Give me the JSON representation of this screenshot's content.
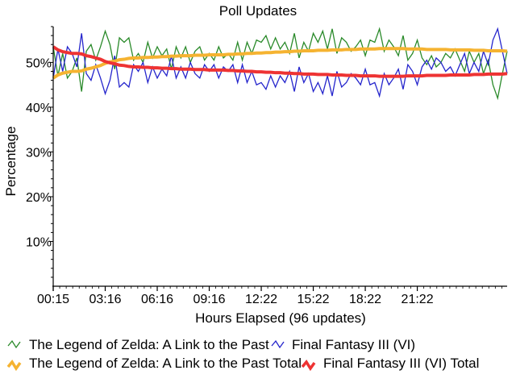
{
  "chart_data": {
    "type": "line",
    "title": "Poll Updates",
    "xlabel": "Hours Elapsed (96 updates)",
    "ylabel": "Percentage",
    "ylim": [
      0,
      58
    ],
    "xlim": [
      0,
      96
    ],
    "y_ticks": [
      "10%",
      "20%",
      "30%",
      "40%",
      "50%"
    ],
    "y_tick_values": [
      10,
      20,
      30,
      40,
      50
    ],
    "x_tick_labels": [
      "00:15",
      "03:16",
      "06:16",
      "09:16",
      "12:22",
      "15:22",
      "18:22",
      "21:22"
    ],
    "x_tick_values": [
      0,
      11,
      22,
      33,
      44,
      55,
      66,
      77
    ],
    "grid": false,
    "legend_placement": "bottom",
    "series": [
      {
        "name": "The Legend of Zelda: A Link to the Past",
        "color": "#2a8a2a",
        "style": "thin",
        "values": [
          53.5,
          47.0,
          52.0,
          46.5,
          48.0,
          51.0,
          43.5,
          52.5,
          54.0,
          50.5,
          53.5,
          57.0,
          54.0,
          48.5,
          55.5,
          54.5,
          55.5,
          50.5,
          52.0,
          50.0,
          54.5,
          51.0,
          53.5,
          51.5,
          53.0,
          48.5,
          53.5,
          51.0,
          53.5,
          50.0,
          52.5,
          53.5,
          50.5,
          52.0,
          50.5,
          53.5,
          51.0,
          52.0,
          50.5,
          54.5,
          50.5,
          54.5,
          52.0,
          55.0,
          54.5,
          56.0,
          53.0,
          55.5,
          53.0,
          54.5,
          52.0,
          56.5,
          51.0,
          54.5,
          52.5,
          56.5,
          54.5,
          57.0,
          53.0,
          57.5,
          52.0,
          55.5,
          54.5,
          52.5,
          53.5,
          55.0,
          51.5,
          55.0,
          54.5,
          57.5,
          52.5,
          55.0,
          53.5,
          51.5,
          56.0,
          50.5,
          52.0,
          55.0,
          51.0,
          49.5,
          51.5,
          49.0,
          50.0,
          52.0,
          51.0,
          53.0,
          50.5,
          48.0,
          52.5,
          50.0,
          52.0,
          47.5,
          50.5,
          45.0,
          42.0,
          47.5,
          52.5
        ]
      },
      {
        "name": "Final Fantasy III (VI)",
        "color": "#2525cc",
        "style": "thin",
        "values": [
          46.5,
          53.0,
          48.0,
          53.5,
          52.0,
          49.0,
          56.5,
          47.5,
          46.0,
          49.5,
          46.5,
          43.0,
          46.0,
          51.5,
          44.5,
          45.5,
          44.5,
          49.5,
          48.0,
          50.0,
          45.5,
          49.0,
          46.5,
          48.5,
          47.0,
          51.5,
          46.5,
          49.0,
          46.5,
          50.0,
          47.5,
          46.5,
          49.5,
          48.0,
          49.5,
          46.5,
          49.0,
          48.0,
          49.5,
          45.5,
          49.5,
          45.5,
          48.0,
          45.0,
          45.5,
          44.0,
          47.0,
          44.5,
          47.0,
          45.5,
          48.0,
          43.5,
          49.0,
          45.5,
          47.5,
          43.5,
          45.5,
          43.0,
          47.0,
          42.5,
          48.0,
          44.5,
          45.5,
          47.5,
          46.5,
          45.0,
          48.5,
          45.0,
          45.5,
          42.5,
          47.5,
          45.0,
          46.5,
          48.5,
          44.0,
          49.5,
          48.0,
          45.0,
          49.0,
          50.5,
          48.5,
          51.0,
          50.0,
          48.0,
          49.0,
          47.0,
          49.5,
          52.0,
          47.5,
          50.0,
          48.0,
          52.5,
          49.5,
          55.0,
          57.5,
          52.5,
          47.5
        ]
      },
      {
        "name": "The Legend of Zelda: A Link to the Past Total",
        "color": "#f5b331",
        "style": "thick",
        "values": [
          46.5,
          47.2,
          47.6,
          47.8,
          48.0,
          48.0,
          48.1,
          48.5,
          48.7,
          49.0,
          49.3,
          49.8,
          50.1,
          50.3,
          50.6,
          50.7,
          50.9,
          51.0,
          51.0,
          51.1,
          51.1,
          51.2,
          51.2,
          51.3,
          51.3,
          51.4,
          51.4,
          51.5,
          51.5,
          51.5,
          51.6,
          51.6,
          51.6,
          51.7,
          51.7,
          51.7,
          51.7,
          51.8,
          51.8,
          51.9,
          51.9,
          52.0,
          52.0,
          52.1,
          52.1,
          52.2,
          52.2,
          52.3,
          52.3,
          52.4,
          52.4,
          52.5,
          52.5,
          52.6,
          52.6,
          52.6,
          52.7,
          52.7,
          52.7,
          52.8,
          52.8,
          52.8,
          52.9,
          52.9,
          52.9,
          53.0,
          53.0,
          53.0,
          53.0,
          53.1,
          53.1,
          53.1,
          53.1,
          53.1,
          53.1,
          53.0,
          53.0,
          53.0,
          53.0,
          52.9,
          52.9,
          52.9,
          52.9,
          52.9,
          52.8,
          52.8,
          52.8,
          52.8,
          52.8,
          52.7,
          52.7,
          52.7,
          52.6,
          52.6,
          52.6,
          52.6,
          52.5
        ]
      },
      {
        "name": "Final Fantasy III (VI) Total",
        "color": "#ee3333",
        "style": "thick",
        "values": [
          53.5,
          52.8,
          52.4,
          52.2,
          52.0,
          52.0,
          51.9,
          51.5,
          51.3,
          51.0,
          50.7,
          50.2,
          49.9,
          49.7,
          49.4,
          49.3,
          49.1,
          49.0,
          49.0,
          48.9,
          48.9,
          48.8,
          48.8,
          48.7,
          48.7,
          48.6,
          48.6,
          48.5,
          48.5,
          48.5,
          48.4,
          48.4,
          48.4,
          48.3,
          48.3,
          48.3,
          48.3,
          48.2,
          48.2,
          48.1,
          48.1,
          48.0,
          48.0,
          47.9,
          47.9,
          47.8,
          47.8,
          47.7,
          47.7,
          47.6,
          47.6,
          47.5,
          47.5,
          47.4,
          47.4,
          47.4,
          47.3,
          47.3,
          47.3,
          47.2,
          47.2,
          47.2,
          47.1,
          47.1,
          47.1,
          47.0,
          47.0,
          47.0,
          47.0,
          46.9,
          46.9,
          46.9,
          46.9,
          46.9,
          46.9,
          47.0,
          47.0,
          47.0,
          47.0,
          47.1,
          47.1,
          47.1,
          47.1,
          47.1,
          47.2,
          47.2,
          47.2,
          47.2,
          47.2,
          47.3,
          47.3,
          47.3,
          47.4,
          47.4,
          47.4,
          47.4,
          47.5
        ]
      }
    ]
  },
  "legend": {
    "items": [
      {
        "label": "The Legend of Zelda: A Link to the Past",
        "color": "#2a8a2a",
        "icon": "thin-zigzag-icon"
      },
      {
        "label": "Final Fantasy III (VI)",
        "color": "#2525cc",
        "icon": "thin-zigzag-icon"
      },
      {
        "label": "The Legend of Zelda: A Link to the Past Total",
        "color": "#f5b331",
        "icon": "thick-zigzag-icon"
      },
      {
        "label": "Final Fantasy III (VI) Total",
        "color": "#ee3333",
        "icon": "thick-zigzag-icon"
      }
    ]
  }
}
